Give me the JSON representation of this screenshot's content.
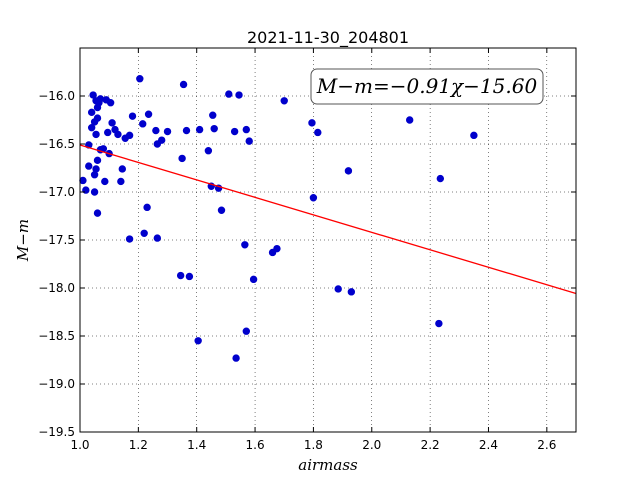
{
  "chart_data": {
    "type": "scatter",
    "title": "2021-11-30_204801",
    "xlabel": "airmass",
    "ylabel": "M−m",
    "xlim": [
      1.0,
      2.7
    ],
    "ylim": [
      -19.5,
      -15.5
    ],
    "y_inverted": false,
    "grid": true,
    "x_ticks": [
      1.0,
      1.2,
      1.4,
      1.6,
      1.8,
      2.0,
      2.2,
      2.4,
      2.6
    ],
    "x_tick_labels": [
      "1.0",
      "1.2",
      "1.4",
      "1.6",
      "1.8",
      "2.0",
      "2.2",
      "2.4",
      "2.6"
    ],
    "y_ticks": [
      -16.0,
      -16.5,
      -17.0,
      -17.5,
      -18.0,
      -18.5,
      -19.0,
      -19.5
    ],
    "y_tick_labels": [
      "−16.0",
      "−16.5",
      "−17.0",
      "−17.5",
      "−18.0",
      "−18.5",
      "−19.0",
      "−19.5"
    ],
    "annotation": "M−m=−0.91χ−15.60",
    "fit": {
      "slope": -0.91,
      "intercept": -15.6,
      "color": "#ff0000"
    },
    "marker_color": "#0000cc",
    "points": [
      [
        1.01,
        -16.88
      ],
      [
        1.02,
        -16.98
      ],
      [
        1.03,
        -16.51
      ],
      [
        1.03,
        -16.73
      ],
      [
        1.04,
        -16.17
      ],
      [
        1.04,
        -16.33
      ],
      [
        1.045,
        -15.99
      ],
      [
        1.05,
        -16.82
      ],
      [
        1.05,
        -17.0
      ],
      [
        1.055,
        -16.76
      ],
      [
        1.05,
        -16.27
      ],
      [
        1.055,
        -16.4
      ],
      [
        1.06,
        -16.23
      ],
      [
        1.06,
        -16.12
      ],
      [
        1.055,
        -16.05
      ],
      [
        1.07,
        -16.03
      ],
      [
        1.065,
        -16.07
      ],
      [
        1.06,
        -16.67
      ],
      [
        1.07,
        -16.56
      ],
      [
        1.08,
        -16.55
      ],
      [
        1.09,
        -16.04
      ],
      [
        1.085,
        -16.89
      ],
      [
        1.06,
        -17.22
      ],
      [
        1.095,
        -16.38
      ],
      [
        1.1,
        -16.6
      ],
      [
        1.105,
        -16.07
      ],
      [
        1.11,
        -16.28
      ],
      [
        1.12,
        -16.35
      ],
      [
        1.13,
        -16.4
      ],
      [
        1.14,
        -16.89
      ],
      [
        1.145,
        -16.76
      ],
      [
        1.155,
        -16.44
      ],
      [
        1.17,
        -16.41
      ],
      [
        1.17,
        -17.49
      ],
      [
        1.18,
        -16.21
      ],
      [
        1.205,
        -15.82
      ],
      [
        1.215,
        -16.29
      ],
      [
        1.22,
        -17.43
      ],
      [
        1.23,
        -17.16
      ],
      [
        1.235,
        -16.19
      ],
      [
        1.26,
        -16.36
      ],
      [
        1.265,
        -16.5
      ],
      [
        1.265,
        -17.48
      ],
      [
        1.28,
        -16.46
      ],
      [
        1.3,
        -16.37
      ],
      [
        1.345,
        -17.87
      ],
      [
        1.35,
        -16.65
      ],
      [
        1.355,
        -15.88
      ],
      [
        1.365,
        -16.36
      ],
      [
        1.375,
        -17.88
      ],
      [
        1.405,
        -18.55
      ],
      [
        1.41,
        -16.35
      ],
      [
        1.44,
        -16.57
      ],
      [
        1.45,
        -16.94
      ],
      [
        1.455,
        -16.2
      ],
      [
        1.46,
        -16.34
      ],
      [
        1.475,
        -16.96
      ],
      [
        1.485,
        -17.19
      ],
      [
        1.51,
        -15.98
      ],
      [
        1.53,
        -16.37
      ],
      [
        1.535,
        -18.73
      ],
      [
        1.545,
        -15.99
      ],
      [
        1.565,
        -17.55
      ],
      [
        1.57,
        -16.35
      ],
      [
        1.57,
        -18.45
      ],
      [
        1.58,
        -16.47
      ],
      [
        1.595,
        -17.91
      ],
      [
        1.66,
        -17.63
      ],
      [
        1.675,
        -17.59
      ],
      [
        1.7,
        -16.05
      ],
      [
        1.795,
        -16.28
      ],
      [
        1.8,
        -17.06
      ],
      [
        1.815,
        -16.38
      ],
      [
        1.885,
        -18.01
      ],
      [
        1.92,
        -16.78
      ],
      [
        1.93,
        -18.04
      ],
      [
        2.13,
        -16.25
      ],
      [
        2.23,
        -18.37
      ],
      [
        2.235,
        -16.86
      ],
      [
        2.35,
        -16.41
      ]
    ]
  }
}
